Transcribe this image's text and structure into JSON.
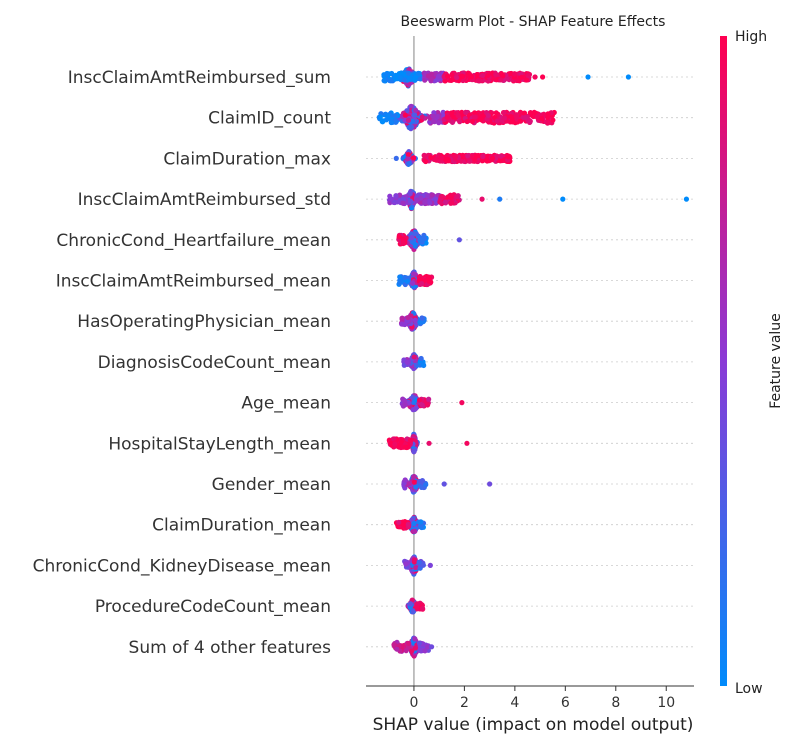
{
  "chart_data": {
    "type": "scatter",
    "subtype": "beeswarm",
    "title": "Beeswarm Plot - SHAP Feature Effects",
    "xlabel": "SHAP value (impact on model output)",
    "xlim": [
      -1.9,
      11.1
    ],
    "xticks": [
      0,
      2,
      4,
      6,
      8,
      10
    ],
    "colorbar": {
      "label": "Feature value",
      "high_label": "High",
      "low_label": "Low",
      "low_color": "#008bfb",
      "mid_color": "#8a3ad6",
      "high_color": "#ff0051"
    },
    "grid": false,
    "zero_line": true,
    "features": [
      {
        "name": "InscClaimAmtReimbursed_sum",
        "core": [
          -0.6,
          0.15
        ],
        "spread": 9,
        "clusters": [
          [
            -1.2,
            0.3,
            0.0,
            70
          ],
          [
            0.4,
            1.2,
            0.6,
            70
          ],
          [
            1.2,
            4.6,
            0.95,
            220
          ]
        ],
        "outliers": [
          [
            4.8,
            0.95
          ],
          [
            5.1,
            1.0
          ],
          [
            6.9,
            0.0
          ],
          [
            8.5,
            0.0
          ]
        ]
      },
      {
        "name": "ClaimID_count",
        "core": [
          -0.6,
          0.4
        ],
        "spread": 12,
        "clusters": [
          [
            -1.4,
            -0.6,
            0.0,
            30
          ],
          [
            0.6,
            1.2,
            0.6,
            50
          ],
          [
            1.2,
            5.6,
            0.95,
            240
          ]
        ],
        "outliers": []
      },
      {
        "name": "ClaimDuration_max",
        "core": [
          -0.4,
          0.0
        ],
        "spread": 7,
        "clusters": [
          [
            0.4,
            1.0,
            0.9,
            30
          ],
          [
            1.0,
            3.8,
            0.95,
            230
          ]
        ],
        "outliers": [
          [
            -0.7,
            0.2
          ]
        ]
      },
      {
        "name": "InscClaimAmtReimbursed_std",
        "core": [
          -0.3,
          0.1
        ],
        "spread": 10,
        "clusters": [
          [
            -1.0,
            -0.3,
            0.5,
            40
          ],
          [
            0.1,
            1.0,
            0.55,
            90
          ],
          [
            1.0,
            1.8,
            0.9,
            50
          ]
        ],
        "outliers": [
          [
            2.7,
            0.9
          ],
          [
            3.4,
            0.1
          ],
          [
            5.9,
            0.0
          ],
          [
            10.8,
            0.0
          ]
        ]
      },
      {
        "name": "ChronicCond_Heartfailure_mean",
        "core": [
          -0.3,
          0.3
        ],
        "spread": 10,
        "clusters": [
          [
            -0.6,
            -0.3,
            0.95,
            30
          ],
          [
            0.2,
            0.5,
            0.1,
            20
          ]
        ],
        "outliers": [
          [
            1.8,
            0.35
          ]
        ]
      },
      {
        "name": "InscClaimAmtReimbursed_mean",
        "core": [
          -0.2,
          0.2
        ],
        "spread": 9,
        "clusters": [
          [
            0.2,
            0.7,
            0.95,
            60
          ],
          [
            -0.6,
            -0.2,
            0.1,
            15
          ]
        ],
        "outliers": []
      },
      {
        "name": "HasOperatingPhysician_mean",
        "core": [
          -0.3,
          0.2
        ],
        "spread": 9,
        "clusters": [
          [
            -0.5,
            -0.2,
            0.6,
            15
          ],
          [
            0.2,
            0.45,
            0.2,
            12
          ]
        ],
        "outliers": []
      },
      {
        "name": "DiagnosisCodeCount_mean",
        "core": [
          -0.2,
          0.2
        ],
        "spread": 8,
        "clusters": [
          [
            -0.4,
            -0.2,
            0.5,
            10
          ],
          [
            0.2,
            0.4,
            0.1,
            10
          ]
        ],
        "outliers": []
      },
      {
        "name": "Age_mean",
        "core": [
          -0.3,
          0.3
        ],
        "spread": 8,
        "clusters": [
          [
            -0.5,
            -0.2,
            0.5,
            15
          ],
          [
            0.2,
            0.6,
            0.85,
            25
          ]
        ],
        "outliers": [
          [
            1.9,
            0.95
          ]
        ]
      },
      {
        "name": "HospitalStayLength_mean",
        "core": [
          -0.1,
          0.1
        ],
        "spread": 10,
        "clusters": [
          [
            -1.0,
            -0.1,
            0.95,
            80
          ]
        ],
        "outliers": [
          [
            0.6,
            0.9
          ],
          [
            2.1,
            0.95
          ]
        ]
      },
      {
        "name": "Gender_mean",
        "core": [
          -0.2,
          0.2
        ],
        "spread": 9,
        "clusters": [
          [
            -0.4,
            -0.2,
            0.55,
            12
          ],
          [
            0.2,
            0.5,
            0.2,
            12
          ]
        ],
        "outliers": [
          [
            1.2,
            0.35
          ],
          [
            3.0,
            0.4
          ]
        ]
      },
      {
        "name": "ClaimDuration_mean",
        "core": [
          -0.2,
          0.2
        ],
        "spread": 8,
        "clusters": [
          [
            -0.7,
            -0.2,
            0.95,
            40
          ],
          [
            0.2,
            0.4,
            0.1,
            10
          ]
        ],
        "outliers": []
      },
      {
        "name": "ChronicCond_KidneyDisease_mean",
        "core": [
          -0.2,
          0.2
        ],
        "spread": 9,
        "clusters": [
          [
            -0.4,
            -0.2,
            0.45,
            10
          ],
          [
            0.2,
            0.4,
            0.3,
            10
          ]
        ],
        "outliers": [
          [
            0.65,
            0.45
          ]
        ]
      },
      {
        "name": "ProcedureCodeCount_mean",
        "core": [
          -0.2,
          0.1
        ],
        "spread": 7,
        "clusters": [
          [
            0.1,
            0.35,
            0.95,
            20
          ]
        ],
        "outliers": []
      },
      {
        "name": "Sum of 4 other features",
        "core": [
          -0.2,
          0.2
        ],
        "spread": 10,
        "clusters": [
          [
            -0.8,
            -0.2,
            0.75,
            30
          ],
          [
            0.2,
            0.6,
            0.5,
            25
          ]
        ],
        "outliers": [
          [
            0.7,
            0.4
          ]
        ]
      }
    ]
  }
}
